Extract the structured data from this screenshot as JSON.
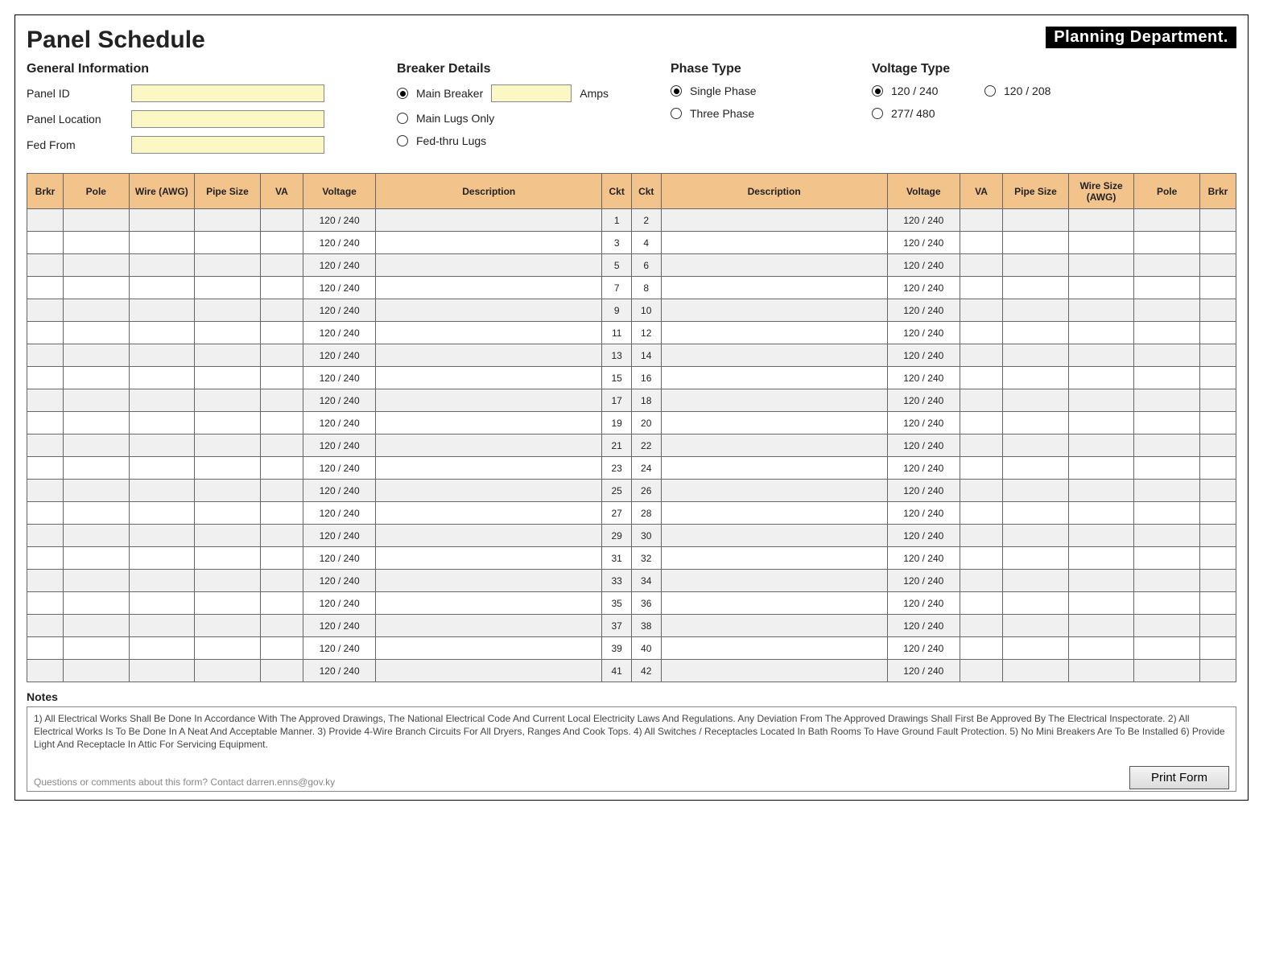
{
  "title": "Panel Schedule",
  "department_badge": "Planning Department.",
  "colors": {
    "header_bg": "#f3c38c",
    "input_bg": "#fcf8c6",
    "shade_row": "#f0f0f0",
    "border": "#666666"
  },
  "general": {
    "section_title": "General Information",
    "fields": [
      {
        "label": "Panel ID",
        "value": ""
      },
      {
        "label": "Panel Location",
        "value": ""
      },
      {
        "label": "Fed From",
        "value": ""
      }
    ]
  },
  "breaker": {
    "section_title": "Breaker Details",
    "options": [
      {
        "label": "Main Breaker",
        "checked": true,
        "has_amps_input": true,
        "amps_suffix": "Amps"
      },
      {
        "label": "Main Lugs Only",
        "checked": false
      },
      {
        "label": "Fed-thru Lugs",
        "checked": false
      }
    ]
  },
  "phase": {
    "section_title": "Phase Type",
    "options": [
      {
        "label": "Single Phase",
        "checked": true
      },
      {
        "label": "Three Phase",
        "checked": false
      }
    ]
  },
  "voltage": {
    "section_title": "Voltage Type",
    "options": [
      {
        "label": "120 / 240",
        "checked": true
      },
      {
        "label": "120 / 208",
        "checked": false
      },
      {
        "label": "277/ 480",
        "checked": false
      }
    ]
  },
  "table": {
    "columns": [
      "Brkr",
      "Pole",
      "Wire (AWG)",
      "Pipe Size",
      "VA",
      "Voltage",
      "Description",
      "Ckt",
      "Ckt",
      "Description",
      "Voltage",
      "VA",
      "Pipe Size",
      "Wire Size (AWG)",
      "Pole",
      "Brkr"
    ],
    "row_count": 21,
    "voltage_cell": "120 / 240"
  },
  "notes": {
    "title": "Notes",
    "text": "1) All Electrical Works Shall Be Done In Accordance With The Approved Drawings, The National Electrical Code And Current Local Electricity Laws And Regulations. Any Deviation From The Approved Drawings Shall First Be Approved By The Electrical Inspectorate.  2) All Electrical Works Is To Be Done In A Neat And Acceptable Manner.  3) Provide 4-Wire Branch Circuits For All Dryers, Ranges And Cook Tops.  4) All Switches / Receptacles Located In Bath Rooms To Have Ground Fault Protection.   5) No Mini Breakers Are To Be Installed   6) Provide Light And Receptacle In Attic For Servicing Equipment.",
    "contact": "Questions or comments about this form? Contact darren.enns@gov.ky"
  },
  "print_button": "Print Form"
}
